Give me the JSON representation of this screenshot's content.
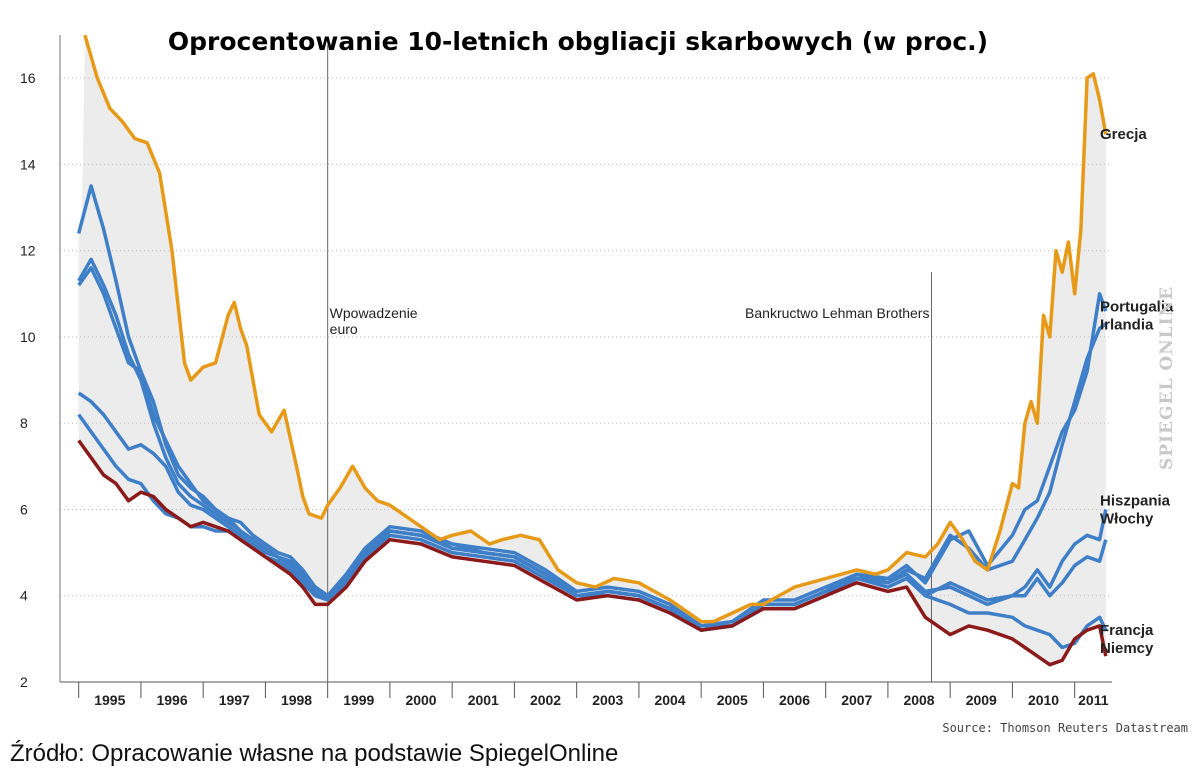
{
  "caption": "Źródło: Opracowanie własne na podstawie SpiegelOnline",
  "source_note": "Source: Thomson Reuters Datastream",
  "watermark": "SPIEGEL ONLINE",
  "chart_data": {
    "type": "line",
    "title": "Oprocentowanie 10-letnich obgliacji skarbowych (w proc.)",
    "xlabel": "",
    "ylabel": "",
    "xlim": [
      1994.7,
      2011.6
    ],
    "ylim": [
      2,
      17
    ],
    "yticks": [
      2,
      4,
      6,
      8,
      10,
      12,
      14,
      16
    ],
    "xticks": [
      "1995",
      "1996",
      "1997",
      "1998",
      "1999",
      "2000",
      "2001",
      "2002",
      "2003",
      "2004",
      "2005",
      "2006",
      "2007",
      "2008",
      "2009",
      "2010",
      "2011"
    ],
    "grid": true,
    "legend": "labels at right end of lines",
    "colors": {
      "grecja": "#e69a17",
      "blue": "#3e7fc7",
      "niemcy": "#8b1a1a",
      "band": "#ececec"
    },
    "annotations": [
      {
        "x": 1999.0,
        "text_lines": [
          "Wpowadzenie",
          "euro"
        ]
      },
      {
        "x": 2008.7,
        "text_lines": [
          "Bankructwo Lehman Brothers"
        ]
      }
    ],
    "end_labels": [
      {
        "lines": [
          "Grecja"
        ],
        "y": 14.7
      },
      {
        "lines": [
          "Portugalia",
          "Irlandia"
        ],
        "y": 10.5
      },
      {
        "lines": [
          "Hiszpania",
          "Włochy"
        ],
        "y": 6.0
      },
      {
        "lines": [
          "Francja",
          "Niemcy"
        ],
        "y": 3.0
      }
    ],
    "series": [
      {
        "name": "Grecja",
        "color": "#e69a17",
        "x": [
          1995.1,
          1995.3,
          1995.5,
          1995.7,
          1995.9,
          1996.1,
          1996.3,
          1996.5,
          1996.7,
          1996.8,
          1997.0,
          1997.2,
          1997.4,
          1997.5,
          1997.6,
          1997.7,
          1997.9,
          1998.1,
          1998.3,
          1998.5,
          1998.6,
          1998.7,
          1998.9,
          1999.0,
          1999.2,
          1999.4,
          1999.6,
          1999.8,
          2000.0,
          2000.2,
          2000.5,
          2000.8,
          2001.0,
          2001.3,
          2001.6,
          2001.8,
          2002.1,
          2002.4,
          2002.7,
          2003.0,
          2003.3,
          2003.6,
          2004.0,
          2004.5,
          2005.0,
          2005.2,
          2005.5,
          2005.8,
          2006.0,
          2006.5,
          2007.0,
          2007.5,
          2007.8,
          2008.0,
          2008.3,
          2008.6,
          2008.8,
          2009.0,
          2009.2,
          2009.4,
          2009.6,
          2009.8,
          2010.0,
          2010.1,
          2010.2,
          2010.3,
          2010.4,
          2010.5,
          2010.6,
          2010.7,
          2010.8,
          2010.9,
          2011.0,
          2011.1,
          2011.2,
          2011.3,
          2011.4,
          2011.5
        ],
        "y": [
          17.0,
          16.0,
          15.3,
          15.0,
          14.6,
          14.5,
          13.8,
          12.0,
          9.4,
          9.0,
          9.3,
          9.4,
          10.5,
          10.8,
          10.2,
          9.8,
          8.2,
          7.8,
          8.3,
          7.0,
          6.3,
          5.9,
          5.8,
          6.1,
          6.5,
          7.0,
          6.5,
          6.2,
          6.1,
          5.9,
          5.6,
          5.3,
          5.4,
          5.5,
          5.2,
          5.3,
          5.4,
          5.3,
          4.6,
          4.3,
          4.2,
          4.4,
          4.3,
          3.9,
          3.4,
          3.4,
          3.6,
          3.8,
          3.8,
          4.2,
          4.4,
          4.6,
          4.5,
          4.6,
          5.0,
          4.9,
          5.2,
          5.7,
          5.3,
          4.8,
          4.6,
          5.5,
          6.6,
          6.5,
          8.0,
          8.5,
          8.0,
          10.5,
          10.0,
          12.0,
          11.5,
          12.2,
          11.0,
          12.5,
          16.0,
          16.1,
          15.5,
          14.7
        ]
      },
      {
        "name": "Portugalia",
        "color": "#3e7fc7",
        "x": [
          1995.0,
          1995.2,
          1995.4,
          1995.6,
          1995.8,
          1996.0,
          1996.2,
          1996.4,
          1996.6,
          1996.8,
          1997.0,
          1997.2,
          1997.4,
          1997.6,
          1997.8,
          1998.0,
          1998.2,
          1998.4,
          1998.6,
          1998.8,
          1999.0,
          1999.3,
          1999.6,
          2000.0,
          2000.5,
          2001.0,
          2001.5,
          2002.0,
          2002.5,
          2003.0,
          2003.5,
          2004.0,
          2004.5,
          2005.0,
          2005.5,
          2006.0,
          2006.5,
          2007.0,
          2007.5,
          2008.0,
          2008.3,
          2008.6,
          2009.0,
          2009.3,
          2009.6,
          2010.0,
          2010.2,
          2010.4,
          2010.6,
          2010.8,
          2011.0,
          2011.2,
          2011.4,
          2011.5
        ],
        "y": [
          12.4,
          13.5,
          12.5,
          11.3,
          10.0,
          9.2,
          8.2,
          7.6,
          7.0,
          6.6,
          6.2,
          6.0,
          5.8,
          5.7,
          5.4,
          5.2,
          5.0,
          4.9,
          4.6,
          4.2,
          4.0,
          4.5,
          5.1,
          5.6,
          5.5,
          5.2,
          5.1,
          5.0,
          4.6,
          4.1,
          4.2,
          4.1,
          3.8,
          3.3,
          3.4,
          3.9,
          3.9,
          4.2,
          4.5,
          4.4,
          4.7,
          4.3,
          5.3,
          5.5,
          4.7,
          5.4,
          6.0,
          6.2,
          7.0,
          7.8,
          8.3,
          9.2,
          11.0,
          10.6
        ]
      },
      {
        "name": "Irlandia",
        "color": "#3e7fc7",
        "x": [
          1995.0,
          1995.2,
          1995.4,
          1995.6,
          1995.8,
          1996.0,
          1996.2,
          1996.4,
          1996.6,
          1996.8,
          1997.0,
          1997.2,
          1997.4,
          1997.6,
          1997.8,
          1998.0,
          1998.2,
          1998.4,
          1998.6,
          1998.8,
          1999.0,
          1999.3,
          1999.6,
          2000.0,
          2000.5,
          2001.0,
          2001.5,
          2002.0,
          2002.5,
          2003.0,
          2003.5,
          2004.0,
          2004.5,
          2005.0,
          2005.5,
          2006.0,
          2006.5,
          2007.0,
          2007.5,
          2008.0,
          2008.3,
          2008.6,
          2009.0,
          2009.3,
          2009.6,
          2010.0,
          2010.2,
          2010.4,
          2010.6,
          2010.8,
          2011.0,
          2011.2,
          2011.4,
          2011.5
        ],
        "y": [
          8.7,
          8.5,
          8.2,
          7.8,
          7.4,
          7.5,
          7.3,
          7.0,
          6.4,
          6.1,
          6.0,
          5.8,
          5.6,
          5.4,
          5.2,
          5.0,
          4.9,
          4.7,
          4.4,
          4.1,
          3.9,
          4.4,
          5.0,
          5.5,
          5.4,
          5.1,
          5.0,
          4.9,
          4.5,
          4.0,
          4.1,
          4.0,
          3.7,
          3.3,
          3.3,
          3.8,
          3.8,
          4.1,
          4.4,
          4.3,
          4.6,
          4.4,
          5.4,
          5.1,
          4.6,
          4.8,
          5.3,
          5.8,
          6.4,
          7.5,
          8.5,
          9.5,
          10.2,
          10.3
        ]
      },
      {
        "name": "Hiszpania",
        "color": "#3e7fc7",
        "x": [
          1995.0,
          1995.2,
          1995.4,
          1995.6,
          1995.8,
          1996.0,
          1996.2,
          1996.4,
          1996.6,
          1996.8,
          1997.0,
          1997.2,
          1997.4,
          1997.6,
          1997.8,
          1998.0,
          1998.2,
          1998.4,
          1998.6,
          1998.8,
          1999.0,
          1999.3,
          1999.6,
          2000.0,
          2000.5,
          2001.0,
          2001.5,
          2002.0,
          2002.5,
          2003.0,
          2003.5,
          2004.0,
          2004.5,
          2005.0,
          2005.5,
          2006.0,
          2006.5,
          2007.0,
          2007.5,
          2008.0,
          2008.3,
          2008.6,
          2009.0,
          2009.3,
          2009.6,
          2010.0,
          2010.2,
          2010.4,
          2010.6,
          2010.8,
          2011.0,
          2011.2,
          2011.4,
          2011.5
        ],
        "y": [
          11.3,
          11.8,
          11.2,
          10.5,
          9.6,
          9.0,
          8.0,
          7.2,
          6.6,
          6.3,
          6.1,
          5.9,
          5.7,
          5.5,
          5.3,
          5.1,
          4.9,
          4.8,
          4.5,
          4.2,
          4.0,
          4.4,
          5.0,
          5.5,
          5.4,
          5.1,
          5.0,
          4.9,
          4.5,
          4.0,
          4.1,
          4.0,
          3.7,
          3.2,
          3.3,
          3.8,
          3.8,
          4.1,
          4.5,
          4.3,
          4.5,
          4.1,
          4.2,
          4.0,
          3.8,
          4.0,
          4.2,
          4.6,
          4.2,
          4.8,
          5.2,
          5.4,
          5.3,
          6.0
        ]
      },
      {
        "name": "Włochy",
        "color": "#3e7fc7",
        "x": [
          1995.0,
          1995.2,
          1995.4,
          1995.6,
          1995.8,
          1996.0,
          1996.2,
          1996.4,
          1996.6,
          1996.8,
          1997.0,
          1997.2,
          1997.4,
          1997.6,
          1997.8,
          1998.0,
          1998.2,
          1998.4,
          1998.6,
          1998.8,
          1999.0,
          1999.3,
          1999.6,
          2000.0,
          2000.5,
          2001.0,
          2001.5,
          2002.0,
          2002.5,
          2003.0,
          2003.5,
          2004.0,
          2004.5,
          2005.0,
          2005.5,
          2006.0,
          2006.5,
          2007.0,
          2007.5,
          2008.0,
          2008.3,
          2008.6,
          2009.0,
          2009.3,
          2009.6,
          2010.0,
          2010.2,
          2010.4,
          2010.6,
          2010.8,
          2011.0,
          2011.2,
          2011.4,
          2011.5
        ],
        "y": [
          11.2,
          11.6,
          11.0,
          10.2,
          9.4,
          9.2,
          8.5,
          7.5,
          6.8,
          6.5,
          6.3,
          6.0,
          5.8,
          5.5,
          5.3,
          5.1,
          4.9,
          4.7,
          4.4,
          4.1,
          3.9,
          4.4,
          5.0,
          5.5,
          5.4,
          5.2,
          5.0,
          4.9,
          4.5,
          4.0,
          4.1,
          4.0,
          3.7,
          3.2,
          3.3,
          3.8,
          3.8,
          4.1,
          4.4,
          4.4,
          4.5,
          4.0,
          4.3,
          4.1,
          3.9,
          4.0,
          4.0,
          4.4,
          4.0,
          4.3,
          4.7,
          4.9,
          4.8,
          5.3
        ]
      },
      {
        "name": "Francja",
        "color": "#3e7fc7",
        "x": [
          1995.0,
          1995.2,
          1995.4,
          1995.6,
          1995.8,
          1996.0,
          1996.2,
          1996.4,
          1996.6,
          1996.8,
          1997.0,
          1997.2,
          1997.4,
          1997.6,
          1997.8,
          1998.0,
          1998.2,
          1998.4,
          1998.6,
          1998.8,
          1999.0,
          1999.3,
          1999.6,
          2000.0,
          2000.5,
          2001.0,
          2001.5,
          2002.0,
          2002.5,
          2003.0,
          2003.5,
          2004.0,
          2004.5,
          2005.0,
          2005.5,
          2006.0,
          2006.5,
          2007.0,
          2007.5,
          2008.0,
          2008.3,
          2008.6,
          2009.0,
          2009.3,
          2009.6,
          2010.0,
          2010.2,
          2010.4,
          2010.6,
          2010.8,
          2011.0,
          2011.2,
          2011.4,
          2011.5
        ],
        "y": [
          8.2,
          7.8,
          7.4,
          7.0,
          6.7,
          6.6,
          6.2,
          5.9,
          5.8,
          5.6,
          5.6,
          5.5,
          5.5,
          5.3,
          5.1,
          4.9,
          4.8,
          4.6,
          4.3,
          4.0,
          3.9,
          4.3,
          4.9,
          5.4,
          5.3,
          5.0,
          4.9,
          4.8,
          4.4,
          4.0,
          4.0,
          3.9,
          3.6,
          3.2,
          3.3,
          3.7,
          3.7,
          4.0,
          4.4,
          4.2,
          4.4,
          4.0,
          3.8,
          3.6,
          3.6,
          3.5,
          3.3,
          3.2,
          3.1,
          2.8,
          2.9,
          3.3,
          3.5,
          3.2
        ]
      },
      {
        "name": "Niemcy",
        "color": "#8b1a1a",
        "x": [
          1995.0,
          1995.2,
          1995.4,
          1995.6,
          1995.8,
          1996.0,
          1996.2,
          1996.4,
          1996.6,
          1996.8,
          1997.0,
          1997.2,
          1997.4,
          1997.6,
          1997.8,
          1998.0,
          1998.2,
          1998.4,
          1998.6,
          1998.8,
          1999.0,
          1999.3,
          1999.6,
          2000.0,
          2000.5,
          2001.0,
          2001.5,
          2002.0,
          2002.5,
          2003.0,
          2003.5,
          2004.0,
          2004.5,
          2005.0,
          2005.5,
          2006.0,
          2006.5,
          2007.0,
          2007.5,
          2008.0,
          2008.3,
          2008.6,
          2009.0,
          2009.3,
          2009.6,
          2010.0,
          2010.2,
          2010.4,
          2010.6,
          2010.8,
          2011.0,
          2011.2,
          2011.4,
          2011.5
        ],
        "y": [
          7.6,
          7.2,
          6.8,
          6.6,
          6.2,
          6.4,
          6.3,
          6.0,
          5.8,
          5.6,
          5.7,
          5.6,
          5.5,
          5.3,
          5.1,
          4.9,
          4.7,
          4.5,
          4.2,
          3.8,
          3.8,
          4.2,
          4.8,
          5.3,
          5.2,
          4.9,
          4.8,
          4.7,
          4.3,
          3.9,
          4.0,
          3.9,
          3.6,
          3.2,
          3.3,
          3.7,
          3.7,
          4.0,
          4.3,
          4.1,
          4.2,
          3.5,
          3.1,
          3.3,
          3.2,
          3.0,
          2.8,
          2.6,
          2.4,
          2.5,
          3.0,
          3.2,
          3.3,
          2.6
        ]
      }
    ]
  }
}
